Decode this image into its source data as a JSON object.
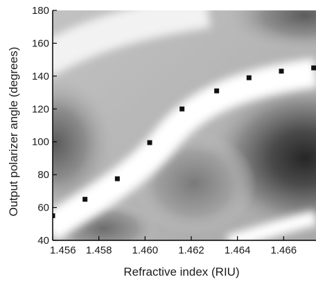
{
  "chart_data": {
    "type": "heatmap",
    "title": "",
    "xlabel": "Refractive index (RIU)",
    "ylabel": "Output polarizer angle (degrees)",
    "xlim": [
      1.456,
      1.4674
    ],
    "ylim": [
      40,
      180
    ],
    "x_ticks": [
      1.456,
      1.458,
      1.46,
      1.462,
      1.464,
      1.466
    ],
    "x_tick_labels": [
      "1.456",
      "1.458",
      "1.460",
      "1.462",
      "1.464",
      "1.466"
    ],
    "y_ticks": [
      40,
      60,
      80,
      100,
      120,
      140,
      160,
      180
    ],
    "y_tick_labels": [
      "40",
      "60",
      "80",
      "100",
      "120",
      "140",
      "160",
      "180"
    ],
    "grid": false,
    "colormap": "grayscale filled contours",
    "series": [
      {
        "type": "scatter",
        "marker": "square",
        "color": "#111111",
        "x": [
          1.456,
          1.4574,
          1.4588,
          1.4602,
          1.4616,
          1.4631,
          1.4645,
          1.4659,
          1.4673
        ],
        "y": [
          55,
          65,
          77.5,
          99.5,
          120,
          131,
          139,
          143,
          145
        ]
      }
    ]
  }
}
